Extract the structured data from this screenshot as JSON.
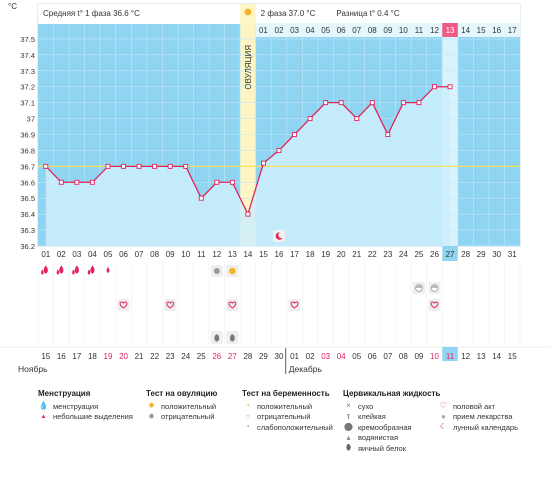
{
  "chart_data": {
    "type": "line",
    "y_axis_unit": "°C",
    "y_ticks": [
      "37.5",
      "37.4",
      "37.3",
      "37.2",
      "37.1",
      "37",
      "36.9",
      "36.8",
      "36.7",
      "36.6",
      "36.5",
      "36.4",
      "36.3",
      "36.2"
    ],
    "ylim": [
      36.2,
      37.6
    ],
    "coverline": 36.7,
    "dates": [
      "01",
      "02",
      "03",
      "04",
      "05",
      "06",
      "07",
      "08",
      "09",
      "10",
      "11",
      "12",
      "13",
      "14",
      "15",
      "16",
      "17",
      "18",
      "19",
      "20",
      "21",
      "22",
      "23",
      "24",
      "25",
      "26",
      "27",
      "28",
      "29",
      "30",
      "31"
    ],
    "highlighted_date": "27",
    "values": [
      36.7,
      36.6,
      36.6,
      36.6,
      36.7,
      36.7,
      36.7,
      36.7,
      36.7,
      36.7,
      36.5,
      36.6,
      36.6,
      36.4,
      36.72,
      36.8,
      36.9,
      37.0,
      37.1,
      37.1,
      37.0,
      37.1,
      36.9,
      37.1,
      37.1,
      37.2,
      37.2,
      null,
      null,
      null,
      null
    ],
    "phase1_stat": "Средняя t° 1 фаза 36.6 °C",
    "ovulation_label": "ОВУЛЯЦИЯ",
    "phase2_stat": "2 фаза 37.0 °C",
    "diff_stat": "Разница t° 0.4 °C",
    "cycle_days": [
      "01",
      "02",
      "03",
      "04",
      "05",
      "06",
      "07",
      "08",
      "09",
      "10",
      "11",
      "12",
      "13",
      "14",
      "15",
      "16",
      "17"
    ],
    "highlighted_cycle_day": "13",
    "calendar_days": [
      "15",
      "16",
      "17",
      "18",
      "19",
      "20",
      "21",
      "22",
      "23",
      "24",
      "25",
      "26",
      "27",
      "28",
      "29",
      "30",
      "01",
      "02",
      "03",
      "04",
      "05",
      "06",
      "07",
      "08",
      "09",
      "10",
      "11",
      "12",
      "13",
      "14",
      "15"
    ],
    "red_calendar_days": [
      4,
      5,
      11,
      12,
      18,
      19,
      25,
      26
    ],
    "highlighted_calendar_index": 26,
    "month_labels": [
      {
        "name": "Ноябрь",
        "index": 0
      },
      {
        "name": "Декабрь",
        "index": 16
      }
    ],
    "marks": {
      "menstruation": [
        0,
        1,
        2,
        3
      ],
      "light_spotting": [
        4
      ],
      "ovulation_negative": [
        11
      ],
      "ovulation_positive": [
        12
      ],
      "pregnancy_weak_positive": [
        15
      ],
      "lunar": [
        15
      ],
      "intercourse": [
        5,
        8,
        12,
        16,
        25
      ],
      "pregnancy_test": [
        24,
        25
      ],
      "egg_white": [
        11,
        12
      ]
    }
  },
  "legend": {
    "menstruation": {
      "title": "Менструация",
      "items": [
        {
          "icon": "drop-icon",
          "label": "менструация"
        },
        {
          "icon": "small-drop-icon",
          "label": "небольшие выделения"
        }
      ]
    },
    "ovulation": {
      "title": "Тест на овуляцию",
      "items": [
        {
          "icon": "sun-positive-icon",
          "label": "положительный"
        },
        {
          "icon": "sun-negative-icon",
          "label": "отрицательный"
        }
      ]
    },
    "pregnancy": {
      "title": "Тест на беременность",
      "items": [
        {
          "icon": "pregnancy-positive-icon",
          "label": "положительный"
        },
        {
          "icon": "pregnancy-negative-icon",
          "label": "отрицательный"
        },
        {
          "icon": "pregnancy-weak-icon",
          "label": "слабоположительный"
        }
      ]
    },
    "cervical": {
      "title": "Цервикальная жидкость",
      "items": [
        {
          "icon": "dry-icon",
          "label": "сухо"
        },
        {
          "icon": "sticky-icon",
          "label": "клейкая"
        },
        {
          "icon": "creamy-icon",
          "label": "кремообразная"
        },
        {
          "icon": "watery-icon",
          "label": "водянистая"
        },
        {
          "icon": "egg-white-icon",
          "label": "яичный белок"
        }
      ]
    },
    "other": {
      "items": [
        {
          "icon": "heart-icon",
          "label": "половой акт"
        },
        {
          "icon": "pill-icon",
          "label": "прием лекарства"
        },
        {
          "icon": "moon-icon",
          "label": "лунный календарь"
        }
      ]
    }
  }
}
